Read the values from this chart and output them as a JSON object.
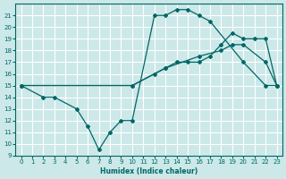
{
  "xlabel": "Humidex (Indice chaleur)",
  "bg_color": "#cce8e8",
  "line_color": "#006666",
  "xlim": [
    -0.5,
    23.5
  ],
  "ylim": [
    9,
    22
  ],
  "yticks": [
    9,
    10,
    11,
    12,
    13,
    14,
    15,
    16,
    17,
    18,
    19,
    20,
    21
  ],
  "xticks": [
    0,
    1,
    2,
    3,
    4,
    5,
    6,
    7,
    8,
    9,
    10,
    11,
    12,
    13,
    14,
    15,
    16,
    17,
    18,
    19,
    20,
    21,
    22,
    23
  ],
  "lines": [
    {
      "x": [
        0,
        2,
        3,
        5,
        6,
        7,
        8,
        9,
        10,
        12,
        13,
        14,
        15,
        16,
        17,
        20,
        22,
        23
      ],
      "y": [
        15,
        14,
        14,
        13,
        11.5,
        9.5,
        11,
        12,
        12,
        21,
        21,
        21.5,
        21.5,
        21,
        20.5,
        17,
        15,
        15
      ]
    },
    {
      "x": [
        0,
        10,
        13,
        16,
        18,
        19,
        20,
        22,
        23
      ],
      "y": [
        15,
        15,
        16.5,
        17.5,
        18,
        18.5,
        18.5,
        17,
        15
      ]
    },
    {
      "x": [
        0,
        10,
        12,
        13,
        14,
        15,
        16,
        17,
        18,
        19,
        20,
        21,
        22,
        23
      ],
      "y": [
        15,
        15,
        16,
        16.5,
        17,
        17,
        17,
        17.5,
        18.5,
        19.5,
        19,
        19,
        19,
        15
      ]
    }
  ],
  "grid_color": "#ffffff",
  "marker": "D",
  "markersize": 2.0,
  "linewidth": 0.9
}
